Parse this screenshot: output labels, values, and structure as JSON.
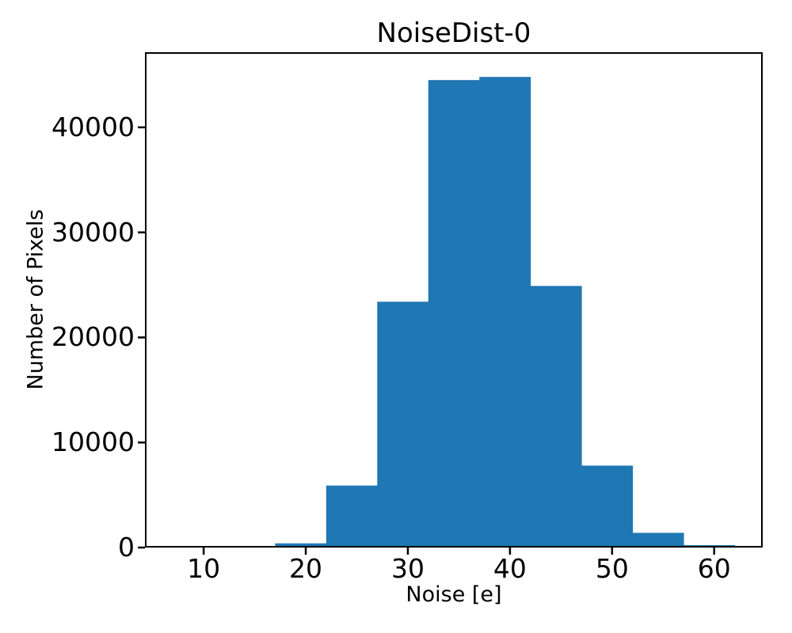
{
  "chart_data": {
    "type": "bar",
    "subtype": "histogram",
    "title": "NoiseDist-0",
    "xlabel": "Noise [e]",
    "ylabel": "Number of Pixels",
    "bar_color": "#1f77b4",
    "axis_color": "#000000",
    "background_color": "#ffffff",
    "bin_edges": [
      7,
      12,
      17,
      22,
      27,
      32,
      37,
      42,
      47,
      52,
      57,
      62
    ],
    "counts": [
      0,
      0,
      400,
      5900,
      23400,
      44500,
      44800,
      24900,
      7800,
      1400,
      230
    ],
    "xticks": [
      10,
      20,
      30,
      40,
      50,
      60
    ],
    "yticks": [
      0,
      10000,
      20000,
      30000,
      40000
    ],
    "xlim": [
      4.25,
      64.75
    ],
    "ylim": [
      0,
      47150
    ],
    "grid": false,
    "legend": null
  }
}
